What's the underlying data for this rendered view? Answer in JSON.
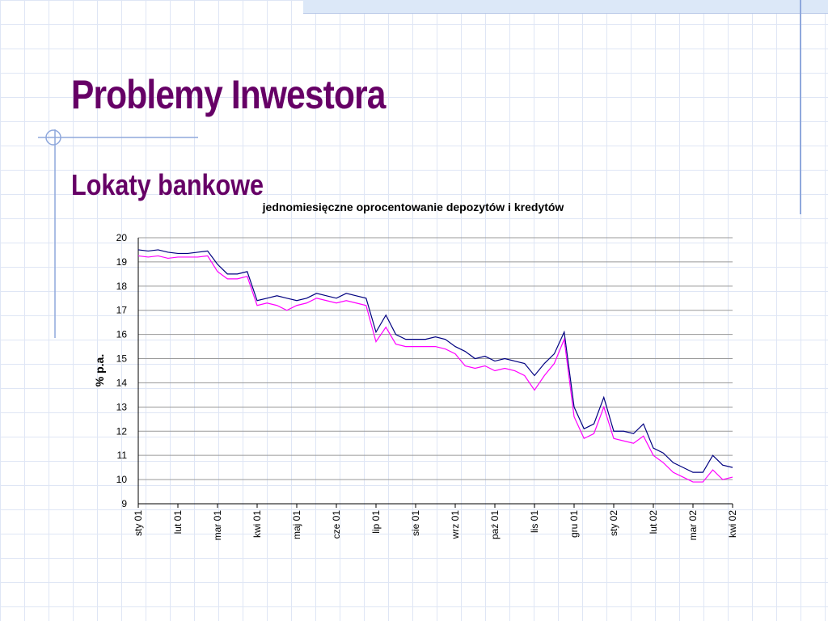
{
  "slide": {
    "title": "Problemy Inwestora",
    "subtitle": "Lokaty bankowe"
  },
  "chart_data": {
    "type": "line",
    "title": "jednomiesięczne oprocentowanie depozytów i kredytów",
    "y_label": "% p.a.",
    "categories": [
      "sty 01",
      null,
      null,
      null,
      "lut 01",
      null,
      null,
      null,
      "mar 01",
      null,
      null,
      null,
      "kwi 01",
      null,
      null,
      null,
      "maj 01",
      null,
      null,
      null,
      "cze 01",
      null,
      null,
      null,
      "lip 01",
      null,
      null,
      null,
      "sie 01",
      null,
      null,
      null,
      "wrz 01",
      null,
      null,
      null,
      "paź 01",
      null,
      null,
      null,
      "lis 01",
      null,
      null,
      null,
      "gru 01",
      null,
      null,
      null,
      "sty 02",
      null,
      null,
      null,
      "lut 02",
      null,
      null,
      null,
      "mar 02",
      null,
      null,
      null,
      "kwi 02"
    ],
    "series": [
      {
        "color": "#000080",
        "values": [
          19.5,
          19.45,
          19.5,
          19.4,
          19.35,
          19.35,
          19.4,
          19.45,
          18.9,
          18.5,
          18.5,
          18.6,
          17.4,
          17.5,
          17.6,
          17.5,
          17.4,
          17.5,
          17.7,
          17.6,
          17.5,
          17.7,
          17.6,
          17.5,
          16.1,
          16.8,
          16.0,
          15.8,
          15.8,
          15.8,
          15.9,
          15.8,
          15.5,
          15.3,
          15.0,
          15.1,
          14.9,
          15.0,
          14.9,
          14.8,
          14.3,
          14.8,
          15.2,
          16.1,
          13.0,
          12.1,
          12.3,
          13.4,
          12.0,
          12.0,
          11.9,
          12.3,
          11.3,
          11.1,
          10.7,
          10.5,
          10.3,
          10.3,
          11.0,
          10.6,
          10.5
        ]
      },
      {
        "color": "#ff00ff",
        "values": [
          19.25,
          19.2,
          19.25,
          19.15,
          19.2,
          19.2,
          19.2,
          19.25,
          18.6,
          18.3,
          18.3,
          18.4,
          17.2,
          17.3,
          17.2,
          17.0,
          17.2,
          17.3,
          17.5,
          17.4,
          17.3,
          17.4,
          17.3,
          17.2,
          15.7,
          16.3,
          15.6,
          15.5,
          15.5,
          15.5,
          15.5,
          15.4,
          15.2,
          14.7,
          14.6,
          14.7,
          14.5,
          14.6,
          14.5,
          14.3,
          13.7,
          14.3,
          14.8,
          15.8,
          12.6,
          11.7,
          11.9,
          13.0,
          11.7,
          11.6,
          11.5,
          11.8,
          11.0,
          10.7,
          10.3,
          10.1,
          9.9,
          9.9,
          10.4,
          10.0,
          10.1
        ]
      }
    ],
    "ylim": [
      9,
      20
    ],
    "yticks": [
      9,
      10,
      11,
      12,
      13,
      14,
      15,
      16,
      17,
      18,
      19,
      20
    ],
    "grid": true
  }
}
